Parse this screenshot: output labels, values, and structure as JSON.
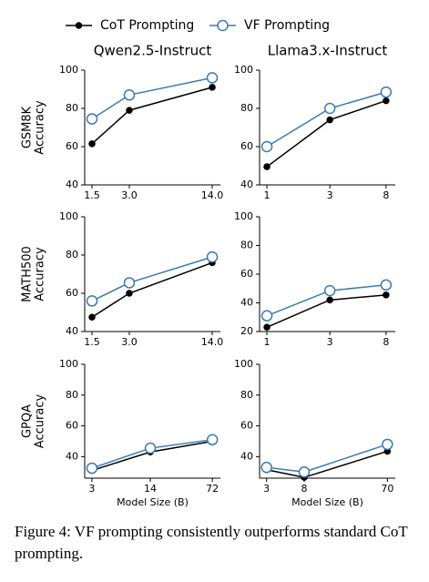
{
  "legend": "top",
  "caption": "Figure 4: VF prompting consistently outperforms standard CoT prompting.",
  "chart_data": [
    {
      "type": "line",
      "title": "Qwen2.5-Instruct",
      "ylabel": [
        "GSM8K",
        "Accuracy"
      ],
      "xscale": "log",
      "x": [
        1.5,
        3.0,
        14.0
      ],
      "xlim": [
        1.31,
        16.3
      ],
      "xticks": [
        1.5,
        {
          "value": 3,
          "label": "3.0"
        },
        {
          "value": 14,
          "label": "14.0"
        }
      ],
      "ylim": [
        40,
        100
      ],
      "yticks": [
        40,
        60,
        80,
        100
      ],
      "series": [
        {
          "name": "CoT Prompting",
          "color": "#000000",
          "marker_fill": "#000000",
          "values": [
            61.5,
            79,
            91
          ]
        },
        {
          "name": "VF Prompting",
          "color": "#3d7bb0",
          "marker_fill": "#ffffff",
          "values": [
            74.5,
            87,
            96
          ]
        }
      ]
    },
    {
      "type": "line",
      "title": "Llama3.x-Instruct",
      "xscale": "log",
      "x": [
        1,
        3,
        8
      ],
      "xlim": [
        0.88,
        9.4
      ],
      "xticks": [
        1,
        3,
        8
      ],
      "ylim": [
        40,
        100
      ],
      "yticks": [
        40,
        60,
        80,
        100
      ],
      "series": [
        {
          "name": "CoT Prompting",
          "color": "#000000",
          "marker_fill": "#000000",
          "values": [
            49.5,
            74,
            84
          ]
        },
        {
          "name": "VF Prompting",
          "color": "#3d7bb0",
          "marker_fill": "#ffffff",
          "values": [
            60,
            80,
            88.5
          ]
        }
      ]
    },
    {
      "type": "line",
      "ylabel": [
        "MATH500",
        "Accuracy"
      ],
      "xscale": "log",
      "x": [
        1.5,
        3.0,
        14.0
      ],
      "xlim": [
        1.31,
        16.3
      ],
      "xticks": [
        1.5,
        {
          "value": 3,
          "label": "3.0"
        },
        {
          "value": 14,
          "label": "14.0"
        }
      ],
      "ylim": [
        40,
        100
      ],
      "yticks": [
        40,
        60,
        80,
        100
      ],
      "series": [
        {
          "name": "CoT Prompting",
          "color": "#000000",
          "marker_fill": "#000000",
          "values": [
            47.5,
            60,
            76
          ]
        },
        {
          "name": "VF Prompting",
          "color": "#3d7bb0",
          "marker_fill": "#ffffff",
          "values": [
            56,
            65.5,
            79
          ]
        }
      ]
    },
    {
      "type": "line",
      "xscale": "log",
      "x": [
        1,
        3,
        8
      ],
      "xlim": [
        0.88,
        9.4
      ],
      "xticks": [
        1,
        3,
        8
      ],
      "ylim": [
        20,
        100
      ],
      "yticks": [
        20,
        40,
        60,
        80,
        100
      ],
      "series": [
        {
          "name": "CoT Prompting",
          "color": "#000000",
          "marker_fill": "#000000",
          "values": [
            23,
            42,
            45.5
          ]
        },
        {
          "name": "VF Prompting",
          "color": "#3d7bb0",
          "marker_fill": "#ffffff",
          "values": [
            31,
            48.5,
            52.5
          ]
        }
      ]
    },
    {
      "type": "line",
      "ylabel": [
        "GPQA",
        "Accuracy"
      ],
      "xlabel": "Model Size (B)",
      "xscale": "log",
      "x": [
        3,
        14,
        72
      ],
      "xlim": [
        2.48,
        89
      ],
      "xticks": [
        3,
        14,
        72
      ],
      "ylim": [
        26,
        100
      ],
      "yticks": [
        40,
        60,
        80,
        100
      ],
      "series": [
        {
          "name": "CoT Prompting",
          "color": "#000000",
          "marker_fill": "#000000",
          "values": [
            31,
            43,
            50
          ]
        },
        {
          "name": "VF Prompting",
          "color": "#3d7bb0",
          "marker_fill": "#ffffff",
          "values": [
            32.5,
            45.5,
            51
          ]
        }
      ]
    },
    {
      "type": "line",
      "xlabel": "Model Size (B)",
      "xscale": "log",
      "x": [
        3,
        8,
        70
      ],
      "xlim": [
        2.5,
        86
      ],
      "xticks": [
        3,
        8,
        70
      ],
      "ylim": [
        26,
        100
      ],
      "yticks": [
        40,
        60,
        80,
        100
      ],
      "series": [
        {
          "name": "CoT Prompting",
          "color": "#000000",
          "marker_fill": "#000000",
          "values": [
            31.5,
            26.5,
            43.5
          ]
        },
        {
          "name": "VF Prompting",
          "color": "#3d7bb0",
          "marker_fill": "#ffffff",
          "values": [
            33,
            30,
            48
          ]
        }
      ]
    }
  ]
}
